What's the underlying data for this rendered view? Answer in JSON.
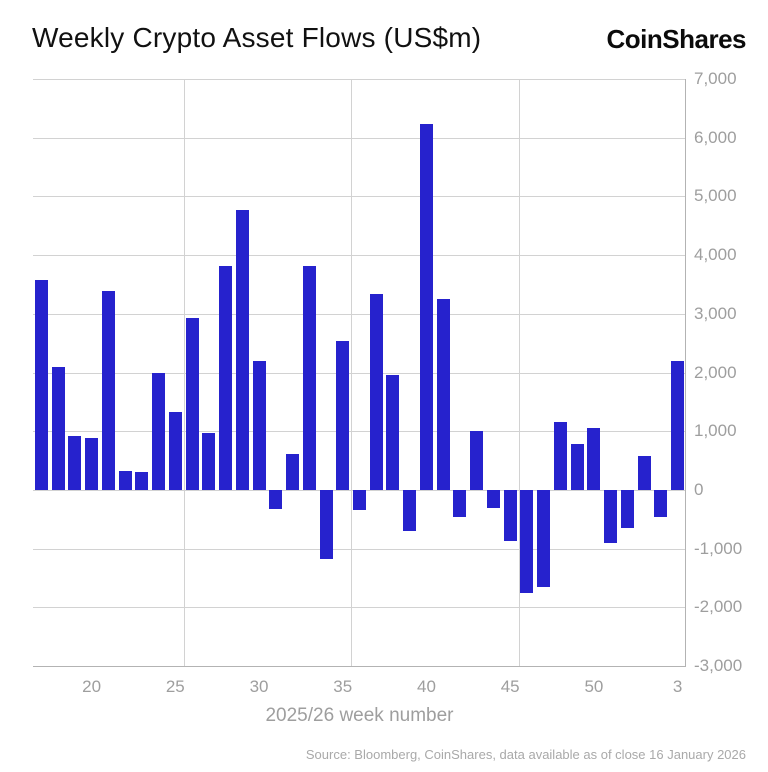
{
  "header": {
    "title": "Weekly Crypto Asset Flows (US$m)",
    "logo": "CoinShares"
  },
  "chart_data": {
    "type": "bar",
    "title": "Weekly Crypto Asset Flows (US$m)",
    "xlabel": "2025/26 week number",
    "ylabel": "",
    "ylim": [
      -3000,
      7000
    ],
    "ytick_step": 1000,
    "grid": true,
    "legend": "none",
    "categories": [
      "17",
      "18",
      "19",
      "20",
      "21",
      "22",
      "23",
      "24",
      "25",
      "26",
      "27",
      "28",
      "29",
      "30",
      "31",
      "32",
      "33",
      "34",
      "35",
      "36",
      "37",
      "38",
      "39",
      "40",
      "41",
      "42",
      "43",
      "44",
      "45",
      "46",
      "47",
      "48",
      "49",
      "50",
      "51",
      "52",
      "1",
      "2",
      "3"
    ],
    "values": [
      3570,
      2100,
      920,
      890,
      3380,
      330,
      300,
      2000,
      1320,
      2920,
      970,
      3810,
      4770,
      2200,
      -330,
      620,
      3810,
      -1180,
      2540,
      -340,
      3340,
      1950,
      -700,
      6240,
      3260,
      -460,
      1000,
      -310,
      -870,
      -1760,
      -1660,
      1150,
      790,
      1060,
      -900,
      -650,
      580,
      -460,
      2190
    ],
    "x_ticks": [
      {
        "label": "20",
        "slot": 3
      },
      {
        "label": "25",
        "slot": 8
      },
      {
        "label": "30",
        "slot": 13
      },
      {
        "label": "35",
        "slot": 18
      },
      {
        "label": "40",
        "slot": 23
      },
      {
        "label": "45",
        "slot": 28
      },
      {
        "label": "50",
        "slot": 33
      },
      {
        "label": "3",
        "slot": 38
      }
    ],
    "vgrid_slots": [
      9,
      19,
      29
    ]
  },
  "footer": {
    "source": "Source: Bloomberg, CoinShares, data available as of close 16 January 2026"
  },
  "colors": {
    "bar": "#2622cd",
    "grid": "#d2d2d2",
    "axis": "#b3b3b3",
    "tick_label": "#9e9e9e",
    "title": "#111111",
    "source": "#a9a9a9"
  }
}
